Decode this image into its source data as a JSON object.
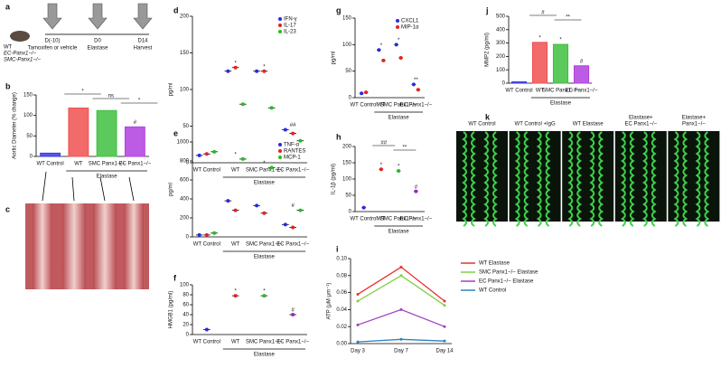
{
  "timeline": {
    "panel": "a",
    "strains": [
      "WT",
      "EC-Panx1−/−",
      "SMC-Panx1−/−"
    ],
    "steps": [
      {
        "day": "D(-10)",
        "label": "Tamoxifen or vehicle"
      },
      {
        "day": "D0",
        "label": "Elastase"
      },
      {
        "day": "D14",
        "label": "Harvest"
      }
    ]
  },
  "photos": {
    "panel": "c"
  },
  "micrographs": {
    "panel": "k",
    "titles": [
      [
        "WT Control"
      ],
      [
        "WT Control +IgG"
      ],
      [
        "WT Elastase"
      ],
      [
        "Elastase+",
        "EC Panx1−/−"
      ],
      [
        "Elastase+",
        "Panx1−/−"
      ]
    ]
  },
  "chart_data": [
    {
      "type": "bar",
      "panel": "b",
      "ylabel": "Aortic Diameter (% change)",
      "categories": [
        "WT Control",
        "WT",
        "SMC Panx1−/−",
        "EC Panx1−/−"
      ],
      "values": [
        8,
        118,
        112,
        72
      ],
      "colors": [
        "#3a3ae0",
        "#f05050",
        "#40c040",
        "#b040e0"
      ],
      "markers": [
        null,
        null,
        null,
        "#"
      ],
      "annotations": [
        "*",
        "ns",
        "*"
      ],
      "group_label": "Elastase",
      "ylim": [
        0,
        150
      ],
      "yticks": [
        0,
        50,
        100,
        150
      ]
    },
    {
      "type": "dot",
      "panel": "d",
      "ylabel": "pg/ml",
      "categories": [
        "WT Control",
        "WT",
        "SMC Panx1−/−",
        "EC Panx1−/−"
      ],
      "series": [
        {
          "name": "IFN-γ",
          "color": "#2a2ae0",
          "values": [
            10,
            125,
            125,
            45
          ]
        },
        {
          "name": "IL-17",
          "color": "#e82020",
          "values": [
            12,
            130,
            125,
            40
          ]
        },
        {
          "name": "IL-23",
          "color": "#20c020",
          "values": [
            15,
            80,
            75,
            30
          ]
        }
      ],
      "markers": [
        null,
        "*",
        "*",
        "##"
      ],
      "group_label": "Elastase",
      "ylim": [
        0,
        200
      ],
      "yticks": [
        0,
        50,
        100,
        150,
        200
      ]
    },
    {
      "type": "dot",
      "panel": "e",
      "ylabel": "pg/ml",
      "categories": [
        "WT Control",
        "WT",
        "SMC Panx1−/−",
        "EC Panx1−/−"
      ],
      "series": [
        {
          "name": "TNF-α",
          "color": "#2a2ae0",
          "values": [
            20,
            380,
            330,
            130
          ]
        },
        {
          "name": "RANTES",
          "color": "#e82020",
          "values": [
            20,
            280,
            250,
            100
          ]
        },
        {
          "name": "MCP-1",
          "color": "#20c020",
          "values": [
            40,
            820,
            730,
            280
          ]
        }
      ],
      "markers": [
        null,
        "*",
        "*",
        "#"
      ],
      "group_label": "Elastase",
      "ylim": [
        0,
        1000
      ],
      "yticks": [
        0,
        200,
        400,
        600,
        800,
        1000
      ]
    },
    {
      "type": "dot",
      "panel": "f",
      "ylabel": "HMGB1 (pg/ml)",
      "categories": [
        "WT Control",
        "WT",
        "SMC Panx1−/−",
        "EC Panx1−/−"
      ],
      "values": [
        10,
        78,
        78,
        40
      ],
      "colors": [
        "#2a2ae0",
        "#e82020",
        "#20c020",
        "#a020d0"
      ],
      "markers": [
        null,
        "*",
        "*",
        "#"
      ],
      "group_label": "Elastase",
      "ylim": [
        0,
        100
      ],
      "yticks": [
        0,
        20,
        40,
        60,
        80,
        100
      ]
    },
    {
      "type": "dot",
      "panel": "g",
      "ylabel": "pg/ml",
      "categories": [
        "WT Control",
        "WT",
        "SMC Panx1−/−",
        "EC Panx1−/−"
      ],
      "series": [
        {
          "name": "CXCL1",
          "color": "#2a2ae0",
          "values": [
            8,
            90,
            100,
            25
          ]
        },
        {
          "name": "MIP-1α",
          "color": "#e82020",
          "values": [
            10,
            70,
            75,
            15
          ]
        }
      ],
      "markers": [
        null,
        "*",
        "*",
        "**"
      ],
      "group_label": "Elastase",
      "ylim": [
        0,
        150
      ],
      "yticks": [
        0,
        50,
        100,
        150
      ]
    },
    {
      "type": "dot",
      "panel": "h",
      "ylabel": "IL-1β (pg/ml)",
      "categories": [
        "WT Control",
        "WT",
        "SMC Panx1−/−",
        "EC Panx1−/−"
      ],
      "values": [
        12,
        130,
        125,
        62
      ],
      "colors": [
        "#2a2ae0",
        "#e82020",
        "#20c020",
        "#a020d0"
      ],
      "markers": [
        null,
        "*",
        "*",
        "#"
      ],
      "annotations": [
        "##",
        "**"
      ],
      "group_label": "Elastase",
      "ylim": [
        0,
        200
      ],
      "yticks": [
        0,
        50,
        100,
        150,
        200
      ]
    },
    {
      "type": "line",
      "panel": "i",
      "ylabel": "ATP (μM·μm⁻¹)",
      "categories": [
        "Day 3",
        "Day 7",
        "Day 14"
      ],
      "series": [
        {
          "name": "WT Elastase",
          "color": "#e83030",
          "values": [
            0.058,
            0.09,
            0.05
          ]
        },
        {
          "name": "SMC Panx1−/− Elastase",
          "color": "#80d040",
          "values": [
            0.05,
            0.08,
            0.045
          ]
        },
        {
          "name": "EC Panx1−/− Elastase",
          "color": "#a040c0",
          "values": [
            0.022,
            0.04,
            0.02
          ]
        },
        {
          "name": "WT Control",
          "color": "#3080c0",
          "values": [
            0.002,
            0.005,
            0.003
          ]
        }
      ],
      "ylim": [
        0,
        0.1
      ],
      "yticks": [
        {
          "value": 0,
          "label": "0.00"
        },
        0.02,
        0.04,
        0.06,
        0.08,
        {
          "value": 0.1,
          "label": "0.10"
        }
      ]
    },
    {
      "type": "bar",
      "panel": "j",
      "ylabel": "MMP2 (pg/ml)",
      "categories": [
        "WT Control",
        "WT",
        "SMC Panx1−/−",
        "EC Panx1−/−"
      ],
      "values": [
        10,
        305,
        290,
        130
      ],
      "colors": [
        "#3a3ae0",
        "#f05050",
        "#40c040",
        "#b040e0"
      ],
      "markers": [
        null,
        "*",
        "*",
        "#"
      ],
      "annotations": [
        "#",
        "**"
      ],
      "group_label": "Elastase",
      "ylim": [
        0,
        500
      ],
      "yticks": [
        0,
        100,
        200,
        300,
        400,
        500
      ]
    }
  ]
}
